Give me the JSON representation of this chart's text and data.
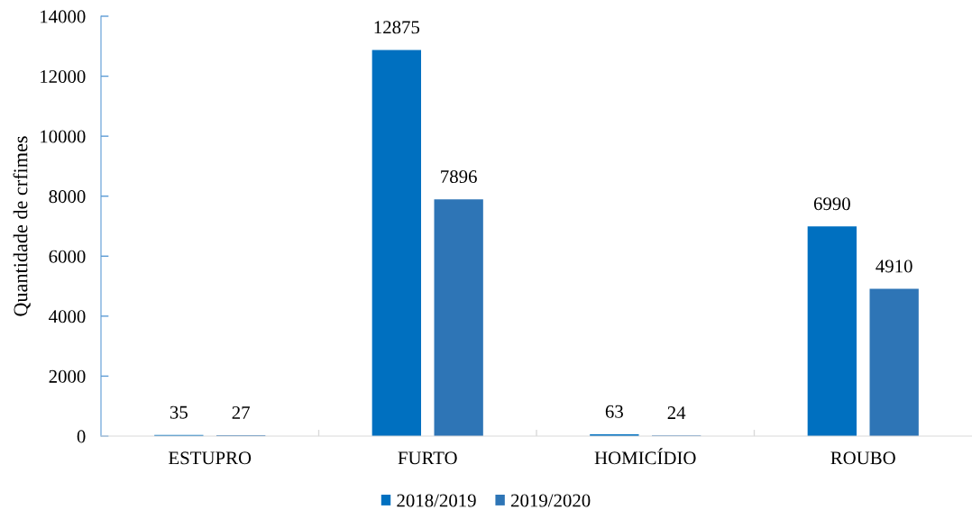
{
  "chart_data": {
    "type": "bar",
    "ylabel": "Quantidade de crfimes",
    "categories": [
      "ESTUPRO",
      "FURTO",
      "HOMICÍDIO",
      "ROUBO"
    ],
    "series": [
      {
        "name": "2018/2019",
        "color": "#0070c0",
        "values": [
          35,
          12875,
          63,
          6990
        ]
      },
      {
        "name": "2019/2020",
        "color": "#2e75b6",
        "values": [
          27,
          7896,
          24,
          4910
        ]
      }
    ],
    "ylim": [
      0,
      14000
    ],
    "yticks": [
      0,
      2000,
      4000,
      6000,
      8000,
      10000,
      12000,
      14000
    ],
    "data_labels": true,
    "legend": "bottom"
  }
}
